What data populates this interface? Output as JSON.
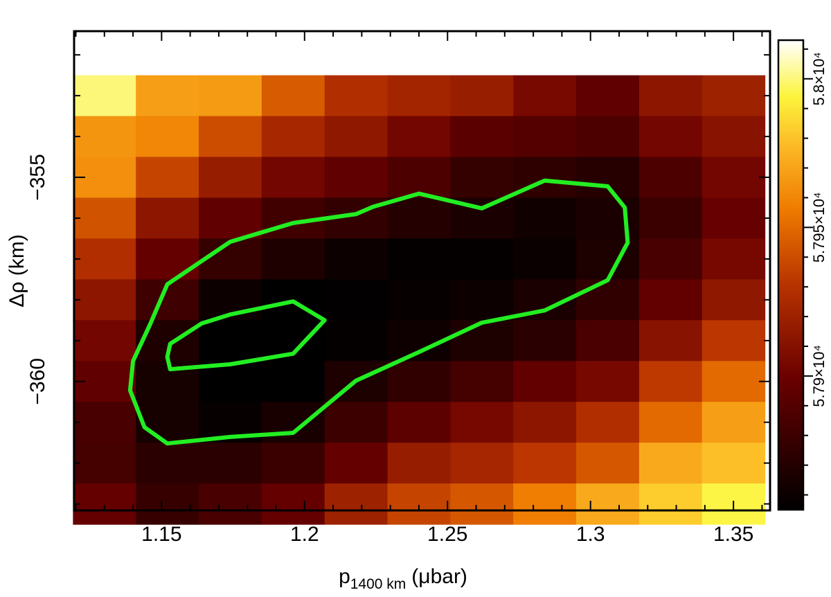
{
  "chart_data": {
    "type": "heatmap",
    "title": "",
    "xlabel": "p",
    "xlabel_sub": "1400 km",
    "xlabel_unit": "(μbar)",
    "ylabel": "Δρ (km)",
    "x_ticks": [
      "1.15",
      "1.2",
      "1.25",
      "1.3",
      "1.35"
    ],
    "y_ticks": [
      "−355",
      "−360"
    ],
    "xlim": [
      1.1194,
      1.3628
    ],
    "ylim": [
      -363.16,
      -351.42
    ],
    "x_centers": [
      1.13,
      1.152,
      1.174,
      1.196,
      1.218,
      1.24,
      1.262,
      1.284,
      1.306,
      1.328,
      1.35
    ],
    "y_centers": [
      -353,
      -354,
      -355,
      -356,
      -357,
      -358,
      -359,
      -360,
      -361,
      -362,
      -363
    ],
    "z_scale": "×10⁴",
    "z": [
      [
        5.8,
        5.7968,
        5.7967,
        5.7945,
        5.7928,
        5.7922,
        5.7918,
        5.7905,
        5.7895,
        5.7913,
        5.792
      ],
      [
        5.7965,
        5.796,
        5.794,
        5.7924,
        5.7914,
        5.7903,
        5.7893,
        5.789,
        5.7887,
        5.7903,
        5.7911
      ],
      [
        5.7963,
        5.7937,
        5.7917,
        5.7903,
        5.7895,
        5.7887,
        5.7877,
        5.7874,
        5.7871,
        5.7887,
        5.7903
      ],
      [
        5.7942,
        5.7913,
        5.7895,
        5.7882,
        5.7876,
        5.787,
        5.7866,
        5.7862,
        5.7866,
        5.7879,
        5.7898
      ],
      [
        5.7928,
        5.7897,
        5.7877,
        5.7868,
        5.786,
        5.7857,
        5.7857,
        5.7859,
        5.7867,
        5.7885,
        5.7904
      ],
      [
        5.7913,
        5.7881,
        5.786,
        5.7855,
        5.7856,
        5.7858,
        5.786,
        5.7866,
        5.7875,
        5.7896,
        5.7914
      ],
      [
        5.7903,
        5.7868,
        5.7854,
        5.7851,
        5.7857,
        5.7861,
        5.7867,
        5.7873,
        5.7886,
        5.7911,
        5.7932
      ],
      [
        5.7895,
        5.7864,
        5.7851,
        5.785,
        5.7867,
        5.7875,
        5.7884,
        5.7896,
        5.7904,
        5.7933,
        5.795
      ],
      [
        5.7885,
        5.7864,
        5.7858,
        5.7865,
        5.788,
        5.7894,
        5.7904,
        5.7913,
        5.7928,
        5.795,
        5.7968
      ],
      [
        5.7884,
        5.7873,
        5.7873,
        5.7879,
        5.7897,
        5.7917,
        5.7923,
        5.7932,
        5.7944,
        5.7972,
        5.7979
      ],
      [
        5.7897,
        5.7878,
        5.7885,
        5.7897,
        5.792,
        5.7937,
        5.7944,
        5.7957,
        5.7972,
        5.7983,
        5.7995
      ]
    ],
    "zlim": [
      5.7855,
      5.8013
    ],
    "colorbar": {
      "ticks": [
        5.79,
        5.795,
        5.8
      ],
      "tick_labels": [
        "5.79×10⁴",
        "5.795×10⁴",
        "5.8×10⁴"
      ]
    },
    "contours": [
      {
        "level": "outer",
        "color": "#22ee22",
        "points": [
          [
            1.152,
            -361.52
          ],
          [
            1.144,
            -361.12
          ],
          [
            1.139,
            -360.22
          ],
          [
            1.14,
            -359.5
          ],
          [
            1.146,
            -358.6
          ],
          [
            1.152,
            -357.62
          ],
          [
            1.174,
            -356.58
          ],
          [
            1.196,
            -356.12
          ],
          [
            1.218,
            -355.9
          ],
          [
            1.224,
            -355.72
          ],
          [
            1.24,
            -355.4
          ],
          [
            1.262,
            -355.76
          ],
          [
            1.284,
            -355.08
          ],
          [
            1.306,
            -355.22
          ],
          [
            1.312,
            -355.74
          ],
          [
            1.313,
            -356.6
          ],
          [
            1.306,
            -357.52
          ],
          [
            1.284,
            -358.26
          ],
          [
            1.262,
            -358.56
          ],
          [
            1.24,
            -359.28
          ],
          [
            1.218,
            -359.98
          ],
          [
            1.196,
            -361.26
          ],
          [
            1.174,
            -361.36
          ],
          [
            1.152,
            -361.52
          ]
        ]
      },
      {
        "level": "inner",
        "color": "#22ee22",
        "points": [
          [
            1.153,
            -359.7
          ],
          [
            1.152,
            -359.4
          ],
          [
            1.153,
            -359.08
          ],
          [
            1.164,
            -358.58
          ],
          [
            1.174,
            -358.36
          ],
          [
            1.196,
            -358.04
          ],
          [
            1.207,
            -358.5
          ],
          [
            1.196,
            -359.32
          ],
          [
            1.174,
            -359.58
          ],
          [
            1.153,
            -359.7
          ]
        ]
      }
    ],
    "grid": false,
    "legend": "none"
  }
}
